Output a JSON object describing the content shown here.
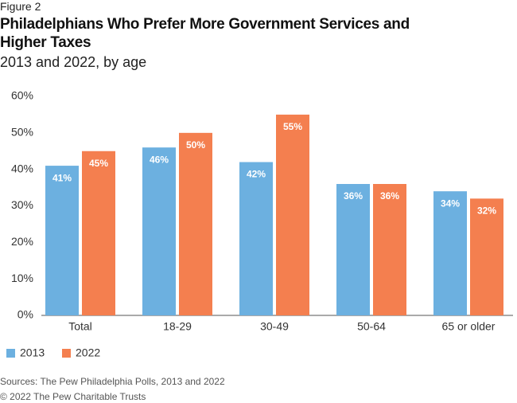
{
  "chart_data": {
    "type": "bar",
    "figure_label": "Figure 2",
    "title": "Philadelphians Who Prefer More Government Services and Higher Taxes",
    "subtitle": "2013 and 2022, by age",
    "categories": [
      "Total",
      "18-29",
      "30-49",
      "50-64",
      "65 or older"
    ],
    "series": [
      {
        "name": "2013",
        "color": "#6cb0e0",
        "values": [
          41,
          46,
          42,
          36,
          34
        ],
        "value_labels": [
          "41%",
          "46%",
          "42%",
          "36%",
          "34%"
        ]
      },
      {
        "name": "2022",
        "color": "#f47f4f",
        "values": [
          45,
          50,
          55,
          36,
          32
        ],
        "value_labels": [
          "45%",
          "50%",
          "55%",
          "36%",
          "32%"
        ]
      }
    ],
    "ylim": [
      0,
      60
    ],
    "yticks": [
      {
        "value": 0,
        "label": "0%"
      },
      {
        "value": 10,
        "label": "10%"
      },
      {
        "value": 20,
        "label": "20%"
      },
      {
        "value": 30,
        "label": "30%"
      },
      {
        "value": 40,
        "label": "40%"
      },
      {
        "value": 50,
        "label": "50%"
      },
      {
        "value": 60,
        "label": "60%"
      }
    ],
    "grid": false,
    "source": "Sources: The Pew Philadelphia Polls, 2013 and 2022",
    "copyright": "© 2022 The Pew Charitable Trusts"
  }
}
